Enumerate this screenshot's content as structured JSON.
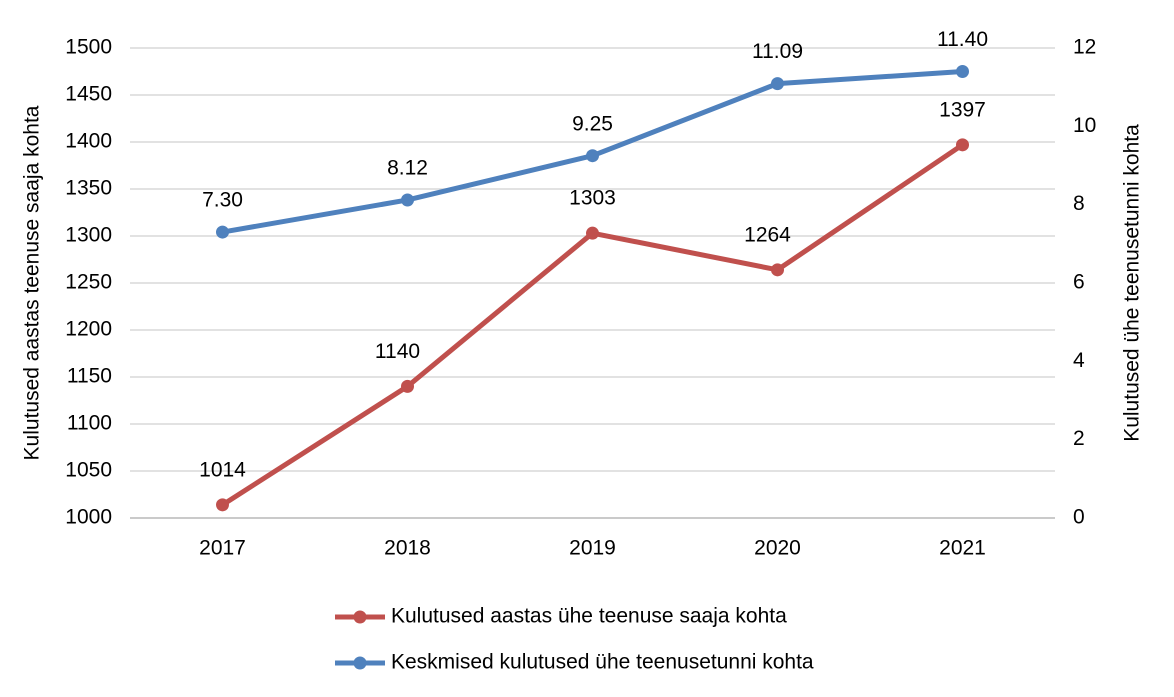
{
  "chart_data": {
    "type": "line",
    "categories": [
      "2017",
      "2018",
      "2019",
      "2020",
      "2021"
    ],
    "y_label": "Kulutused aastas teenuse saaja kohta",
    "y2_label": "Kulutused ühe teenusetunni kohta",
    "ylim": [
      1000,
      1500
    ],
    "yticks": [
      1000,
      1050,
      1100,
      1150,
      1200,
      1250,
      1300,
      1350,
      1400,
      1450,
      1500
    ],
    "y2lim": [
      0,
      12
    ],
    "y2ticks": [
      0,
      2,
      4,
      6,
      8,
      10,
      12
    ],
    "grid": true,
    "legend": "bottom",
    "series": [
      {
        "name": "Kulutused aastas ühe teenuse saaja kohta",
        "color": "#c0504d",
        "values": [
          1014,
          1140,
          1303,
          1264,
          1397
        ]
      },
      {
        "name": "Keskmised kulutused ühe teenusetunni kohta",
        "color": "#4f81bd",
        "axis": "y2",
        "values": [
          7.3,
          8.12,
          9.25,
          11.09,
          11.4
        ],
        "value_labels": [
          "7.30",
          "8.12",
          "9.25",
          "11.09",
          "11.40"
        ]
      }
    ]
  }
}
